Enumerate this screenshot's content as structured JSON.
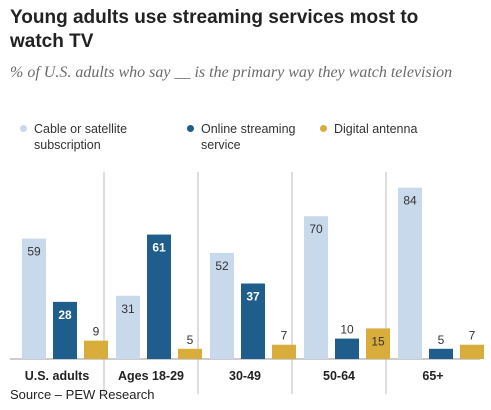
{
  "title": "Young adults use streaming services most to watch TV",
  "subtitle": "% of U.S. adults who say __ is the primary way they watch television",
  "source": "Source – PEW Research",
  "colors": {
    "cable": "#c9d9ec",
    "streaming": "#1e5d8c",
    "antenna": "#d9ad3c"
  },
  "chart_data": {
    "type": "bar",
    "title": "Young adults use streaming services most to watch TV",
    "subtitle": "% of U.S. adults who say __ is the primary way they watch television",
    "xlabel": "",
    "ylabel": "",
    "ylim": [
      0,
      100
    ],
    "grid": false,
    "legend_position": "top",
    "categories": [
      "U.S. adults",
      "Ages 18-29",
      "30-49",
      "50-64",
      "65+"
    ],
    "series": [
      {
        "name": "Cable or satellite subscription",
        "values": [
          59,
          31,
          52,
          70,
          84
        ]
      },
      {
        "name": "Online streaming service",
        "values": [
          28,
          61,
          37,
          10,
          5
        ]
      },
      {
        "name": "Digital antenna",
        "values": [
          9,
          5,
          7,
          15,
          7
        ]
      }
    ]
  }
}
